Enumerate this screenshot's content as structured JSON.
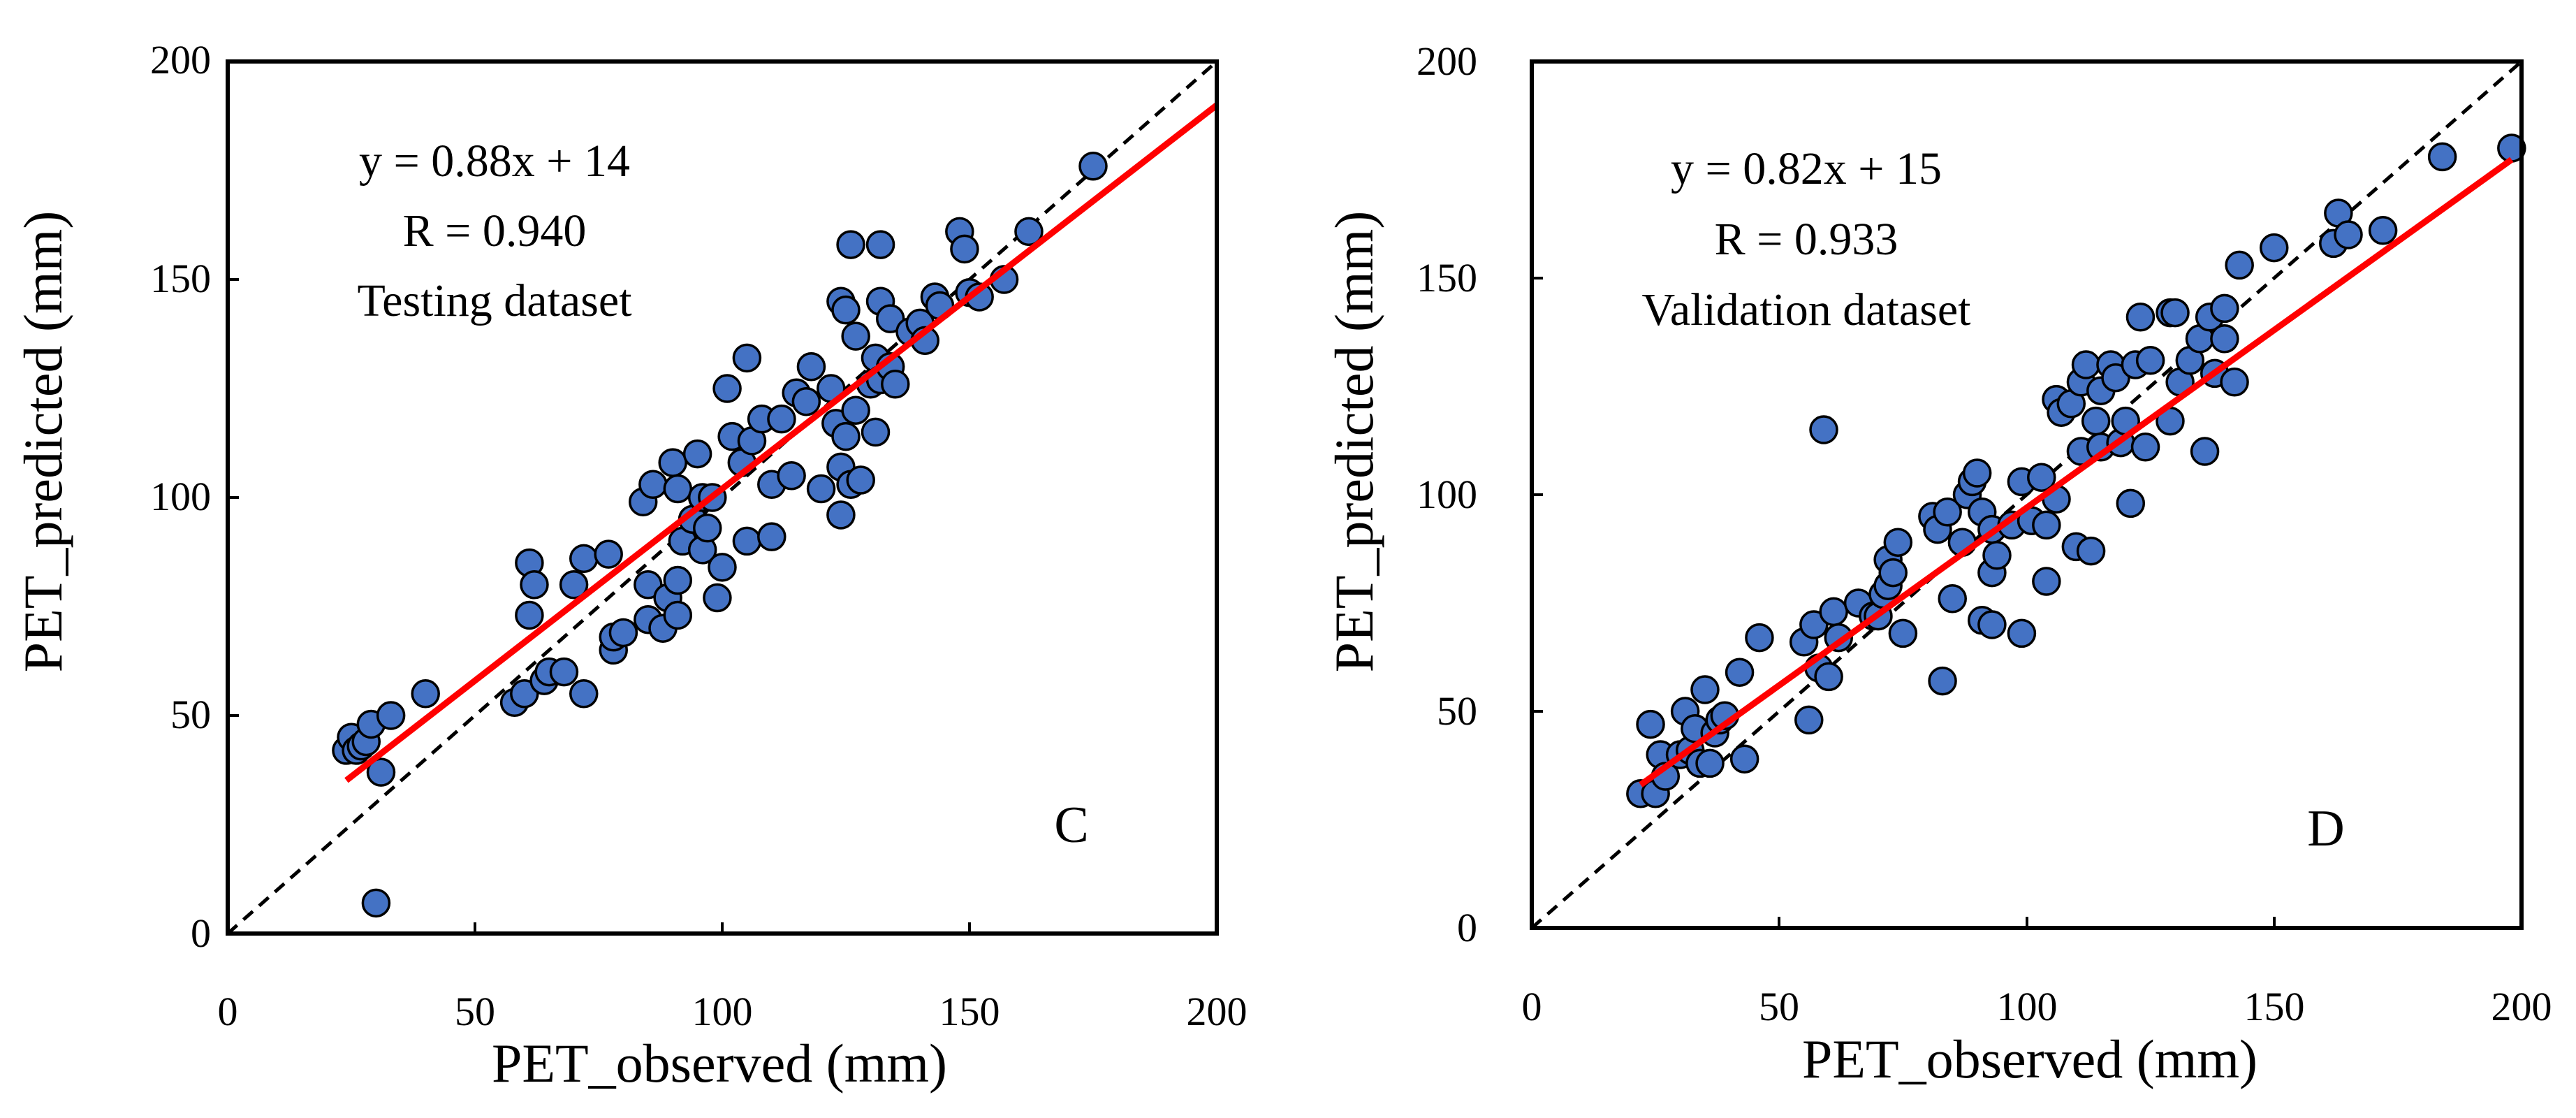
{
  "colors": {
    "point_fill": "#4472C4",
    "point_edge": "#000000",
    "fit_line": "#FF0000",
    "identity_line": "#000000"
  },
  "chart_data": [
    {
      "type": "scatter",
      "panel_label": "C",
      "annotations": [
        "y = 0.88x + 14",
        "R = 0.940",
        "Testing dataset"
      ],
      "xlabel": "PET_observed (mm)",
      "ylabel": "PET_predicted (mm)",
      "xlim": [
        0,
        200
      ],
      "ylim": [
        0,
        200
      ],
      "xticks": [
        "0",
        "50",
        "100",
        "150",
        "200"
      ],
      "yticks": [
        "0",
        "50",
        "100",
        "150",
        "200"
      ],
      "grid": false,
      "fit": {
        "slope": 0.88,
        "intercept": 14,
        "x_range": [
          24,
          200
        ]
      },
      "identity_line": true,
      "points": [
        [
          24,
          42
        ],
        [
          25,
          45
        ],
        [
          26,
          42
        ],
        [
          27,
          43
        ],
        [
          28,
          44
        ],
        [
          29,
          48
        ],
        [
          30,
          7
        ],
        [
          31,
          37
        ],
        [
          33,
          50
        ],
        [
          40,
          55
        ],
        [
          58,
          53
        ],
        [
          60,
          55
        ],
        [
          61,
          85
        ],
        [
          61,
          73
        ],
        [
          62,
          80
        ],
        [
          64,
          58
        ],
        [
          65,
          60
        ],
        [
          68,
          60
        ],
        [
          70,
          80
        ],
        [
          72,
          55
        ],
        [
          72,
          86
        ],
        [
          77,
          87
        ],
        [
          78,
          65
        ],
        [
          78,
          68
        ],
        [
          80,
          69
        ],
        [
          84,
          99
        ],
        [
          85,
          72
        ],
        [
          85,
          80
        ],
        [
          86,
          103
        ],
        [
          88,
          70
        ],
        [
          89,
          77
        ],
        [
          90,
          108
        ],
        [
          91,
          73
        ],
        [
          91,
          81
        ],
        [
          91,
          102
        ],
        [
          92,
          90
        ],
        [
          94,
          95
        ],
        [
          95,
          110
        ],
        [
          96,
          100
        ],
        [
          96,
          88
        ],
        [
          97,
          93
        ],
        [
          98,
          100
        ],
        [
          99,
          77
        ],
        [
          100,
          84
        ],
        [
          101,
          125
        ],
        [
          102,
          114
        ],
        [
          104,
          108
        ],
        [
          105,
          132
        ],
        [
          105,
          90
        ],
        [
          106,
          113
        ],
        [
          108,
          118
        ],
        [
          110,
          103
        ],
        [
          110,
          91
        ],
        [
          112,
          118
        ],
        [
          114,
          105
        ],
        [
          115,
          124
        ],
        [
          117,
          122
        ],
        [
          118,
          130
        ],
        [
          120,
          102
        ],
        [
          122,
          125
        ],
        [
          123,
          117
        ],
        [
          124,
          96
        ],
        [
          124,
          145
        ],
        [
          124,
          107
        ],
        [
          125,
          114
        ],
        [
          125,
          143
        ],
        [
          126,
          103
        ],
        [
          126,
          158
        ],
        [
          127,
          120
        ],
        [
          127,
          137
        ],
        [
          128,
          104
        ],
        [
          130,
          126
        ],
        [
          131,
          115
        ],
        [
          131,
          132
        ],
        [
          132,
          145
        ],
        [
          132,
          127
        ],
        [
          132,
          158
        ],
        [
          134,
          130
        ],
        [
          134,
          141
        ],
        [
          135,
          126
        ],
        [
          138,
          138
        ],
        [
          140,
          140
        ],
        [
          141,
          136
        ],
        [
          143,
          146
        ],
        [
          144,
          144
        ],
        [
          148,
          161
        ],
        [
          149,
          157
        ],
        [
          150,
          147
        ],
        [
          152,
          146
        ],
        [
          157,
          150
        ],
        [
          162,
          161
        ],
        [
          175,
          176
        ]
      ]
    },
    {
      "type": "scatter",
      "panel_label": "D",
      "annotations": [
        "y = 0.82x + 15",
        "R = 0.933",
        "Validation dataset"
      ],
      "xlabel": "PET_observed (mm)",
      "ylabel": "PET_predicted (mm)",
      "xlim": [
        0,
        200
      ],
      "ylim": [
        0,
        200
      ],
      "xticks": [
        "0",
        "50",
        "100",
        "150",
        "200"
      ],
      "yticks": [
        "0",
        "50",
        "100",
        "150",
        "200"
      ],
      "grid": false,
      "fit": {
        "slope": 0.82,
        "intercept": 15,
        "x_range": [
          22,
          198
        ]
      },
      "identity_line": true,
      "points": [
        [
          22,
          31
        ],
        [
          24,
          47
        ],
        [
          25,
          31
        ],
        [
          26,
          40
        ],
        [
          27,
          35
        ],
        [
          30,
          40
        ],
        [
          31,
          50
        ],
        [
          32,
          41
        ],
        [
          33,
          46
        ],
        [
          34,
          38
        ],
        [
          35,
          55
        ],
        [
          36,
          38
        ],
        [
          37,
          45
        ],
        [
          38,
          48
        ],
        [
          39,
          49
        ],
        [
          42,
          59
        ],
        [
          43,
          39
        ],
        [
          46,
          67
        ],
        [
          55,
          66
        ],
        [
          56,
          48
        ],
        [
          57,
          70
        ],
        [
          58,
          60
        ],
        [
          59,
          115
        ],
        [
          60,
          58
        ],
        [
          61,
          73
        ],
        [
          62,
          67
        ],
        [
          66,
          75
        ],
        [
          69,
          72
        ],
        [
          70,
          72
        ],
        [
          71,
          77
        ],
        [
          72,
          79
        ],
        [
          72,
          85
        ],
        [
          73,
          82
        ],
        [
          74,
          89
        ],
        [
          75,
          68
        ],
        [
          81,
          95
        ],
        [
          82,
          92
        ],
        [
          83,
          57
        ],
        [
          84,
          96
        ],
        [
          85,
          76
        ],
        [
          87,
          89
        ],
        [
          88,
          100
        ],
        [
          89,
          103
        ],
        [
          90,
          105
        ],
        [
          91,
          71
        ],
        [
          91,
          96
        ],
        [
          93,
          70
        ],
        [
          93,
          82
        ],
        [
          93,
          92
        ],
        [
          94,
          86
        ],
        [
          97,
          93
        ],
        [
          99,
          68
        ],
        [
          99,
          103
        ],
        [
          101,
          94
        ],
        [
          103,
          104
        ],
        [
          104,
          93
        ],
        [
          104,
          80
        ],
        [
          106,
          99
        ],
        [
          106,
          122
        ],
        [
          107,
          119
        ],
        [
          109,
          121
        ],
        [
          110,
          88
        ],
        [
          111,
          110
        ],
        [
          111,
          126
        ],
        [
          112,
          130
        ],
        [
          113,
          87
        ],
        [
          114,
          117
        ],
        [
          115,
          124
        ],
        [
          115,
          111
        ],
        [
          117,
          130
        ],
        [
          118,
          127
        ],
        [
          119,
          112
        ],
        [
          120,
          117
        ],
        [
          121,
          98
        ],
        [
          122,
          130
        ],
        [
          123,
          141
        ],
        [
          124,
          111
        ],
        [
          125,
          131
        ],
        [
          129,
          142
        ],
        [
          129,
          117
        ],
        [
          130,
          142
        ],
        [
          131,
          126
        ],
        [
          133,
          131
        ],
        [
          135,
          136
        ],
        [
          136,
          110
        ],
        [
          137,
          141
        ],
        [
          138,
          128
        ],
        [
          140,
          136
        ],
        [
          140,
          143
        ],
        [
          142,
          126
        ],
        [
          143,
          153
        ],
        [
          150,
          157
        ],
        [
          162,
          158
        ],
        [
          163,
          165
        ],
        [
          165,
          160
        ],
        [
          172,
          161
        ],
        [
          184,
          178
        ],
        [
          198,
          180
        ]
      ]
    }
  ]
}
